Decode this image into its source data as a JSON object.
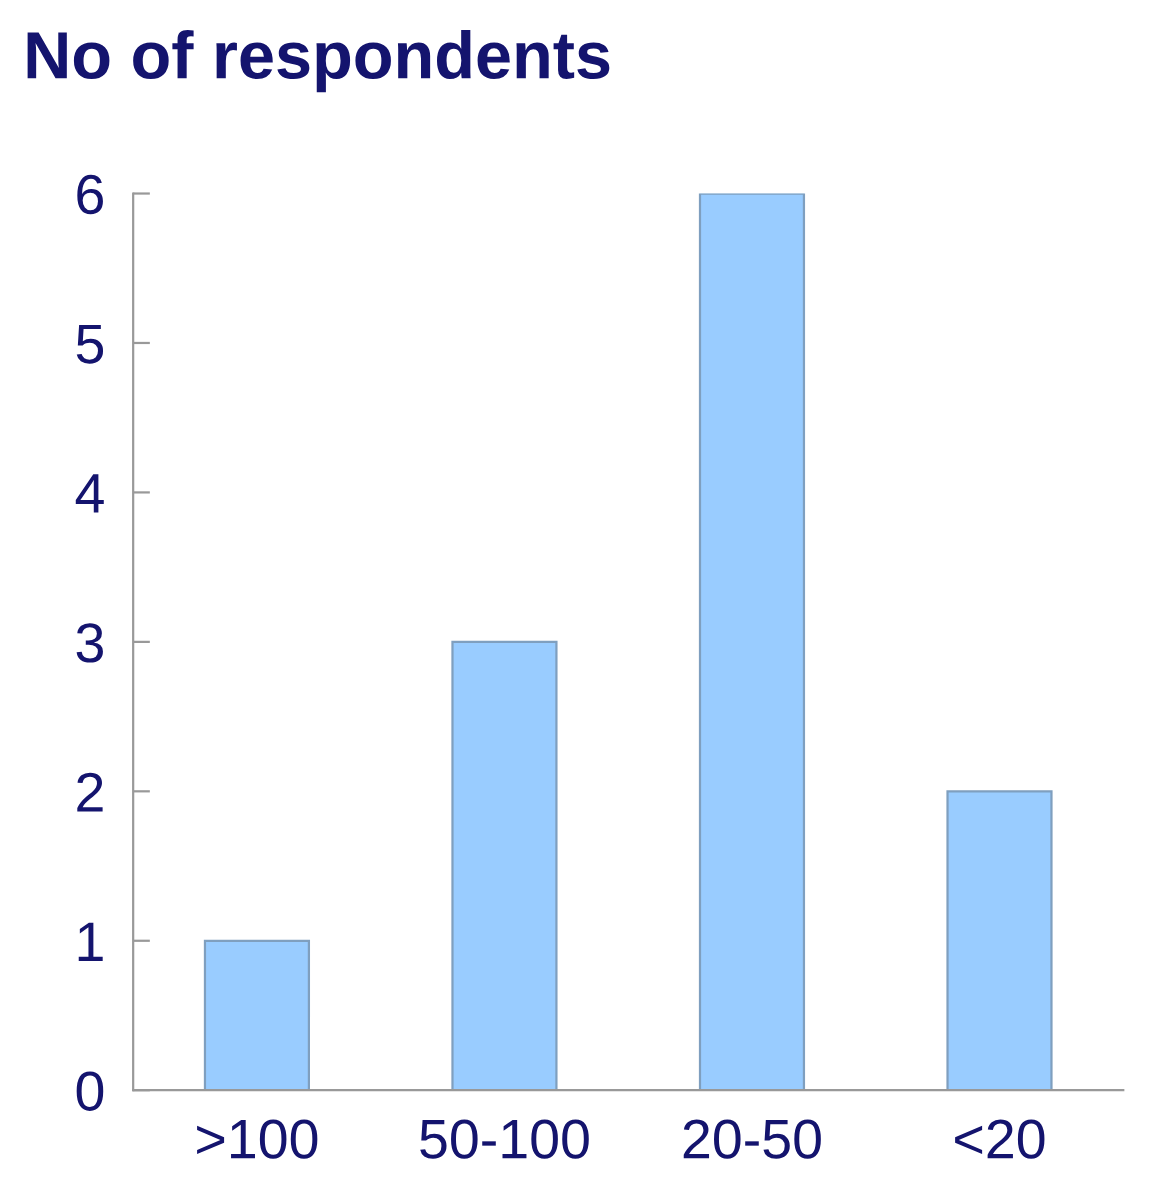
{
  "chart_data": {
    "type": "bar",
    "title": "No of respondents",
    "categories": [
      ">100",
      "50-100",
      "20-50",
      "<20"
    ],
    "values": [
      1,
      3,
      6,
      2
    ],
    "color": "#99ccff",
    "ylim": [
      0,
      6
    ],
    "yticks": [
      0,
      1,
      2,
      3,
      4,
      5,
      6
    ],
    "grid": false
  }
}
